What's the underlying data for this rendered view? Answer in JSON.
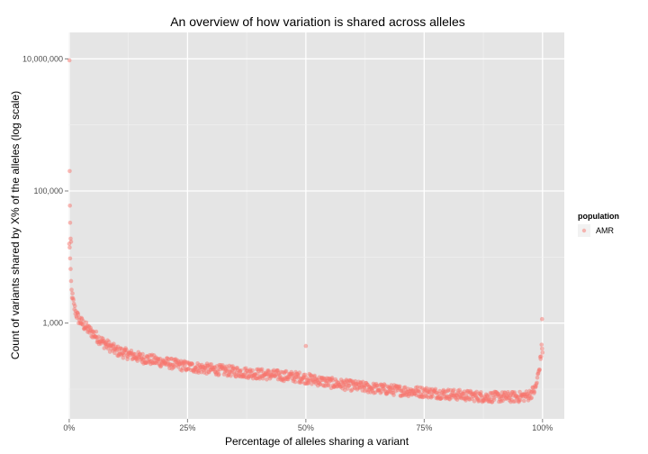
{
  "chart_data": {
    "type": "scatter",
    "title": "An overview of how variation is shared across alleles",
    "xlabel": "Percentage of alleles sharing a variant",
    "ylabel": "Count of variants shared by X% of the alleles (log scale)",
    "x_scale": "linear",
    "y_scale": "log10",
    "xlim": [
      0,
      100
    ],
    "ylim_log10": [
      1.55,
      7.4
    ],
    "x_ticks": [
      0,
      25,
      50,
      75,
      100
    ],
    "x_tick_labels": [
      "0%",
      "25%",
      "50%",
      "75%",
      "100%"
    ],
    "y_ticks": [
      1000,
      100000,
      10000000
    ],
    "y_tick_labels": [
      "1,000",
      "100,000",
      "10,000,000"
    ],
    "grid": true,
    "panel_color": "#e5e5e5",
    "grid_color": "#ffffff",
    "point_color": "#f8766d",
    "point_alpha": 0.5,
    "legend": {
      "title": "population",
      "position": "right",
      "entries": [
        {
          "label": "AMR",
          "color": "#f8766d"
        }
      ]
    },
    "series": [
      {
        "name": "AMR",
        "trend": {
          "x": [
            0.1,
            0.3,
            0.5,
            1,
            1.5,
            2,
            3,
            4,
            5,
            7,
            10,
            15,
            20,
            25,
            30,
            35,
            40,
            45,
            49,
            55,
            60,
            65,
            70,
            75,
            80,
            85,
            88,
            92,
            95,
            97,
            98.5,
            99.3,
            99.8
          ],
          "y": [
            15000,
            5500,
            3000,
            1800,
            1400,
            1150,
            950,
            800,
            700,
            520,
            380,
            300,
            255,
            220,
            200,
            185,
            170,
            160,
            150,
            125,
            112,
            102,
            95,
            90,
            84,
            79,
            76,
            76,
            76,
            80,
            100,
            200,
            400
          ]
        },
        "outliers": [
          {
            "x": 0.05,
            "y": 9500000
          },
          {
            "x": 0.1,
            "y": 200000
          },
          {
            "x": 0.15,
            "y": 60000
          },
          {
            "x": 0.2,
            "y": 33000
          },
          {
            "x": 0.3,
            "y": 19000
          },
          {
            "x": 0.4,
            "y": 17000
          },
          {
            "x": 50,
            "y": 450
          },
          {
            "x": 99.9,
            "y": 1150
          }
        ]
      }
    ]
  }
}
